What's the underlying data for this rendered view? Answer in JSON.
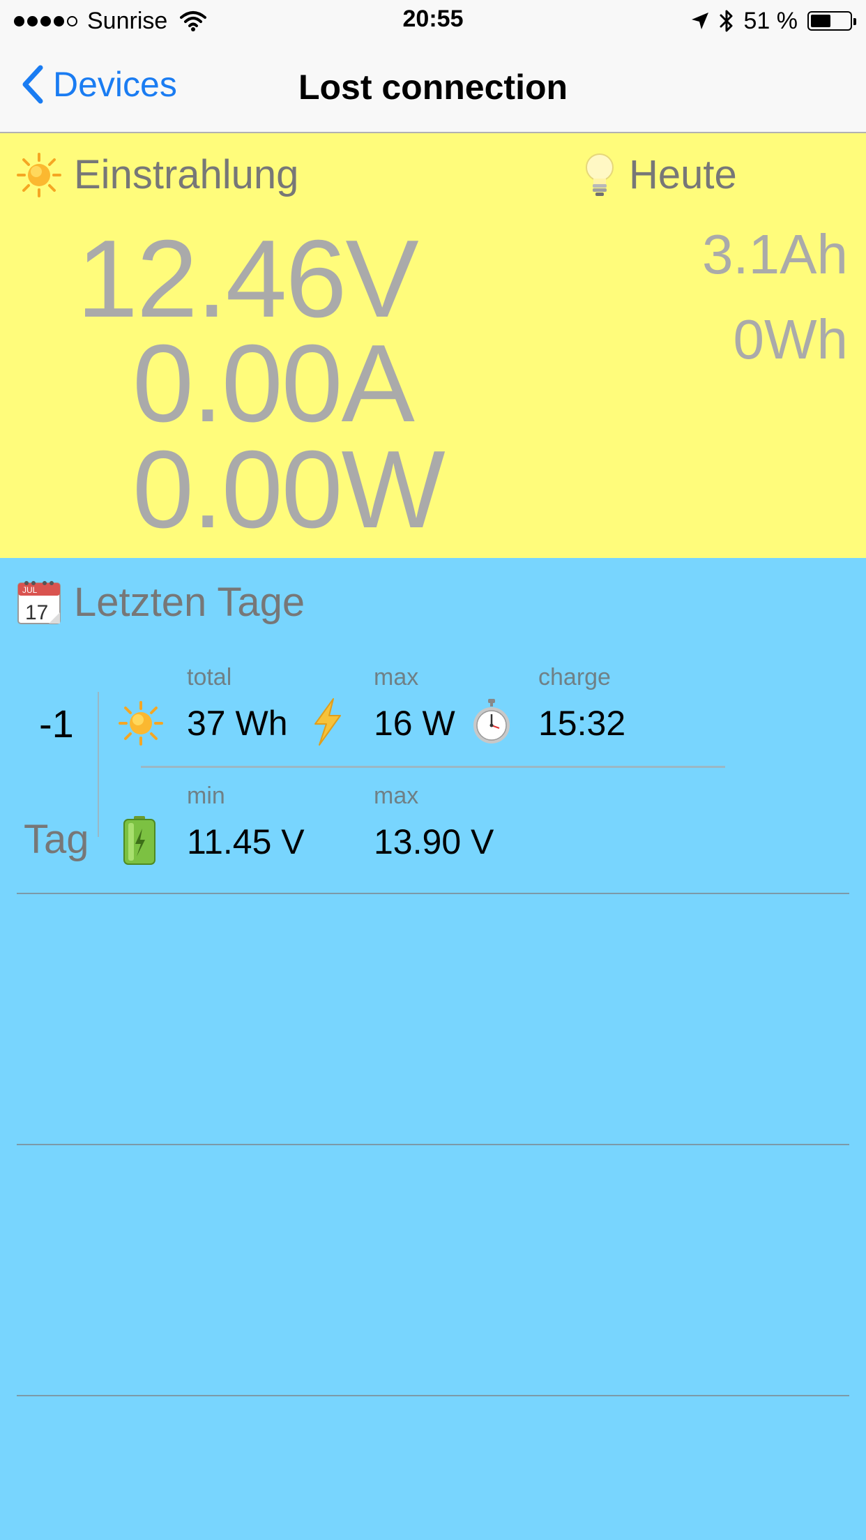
{
  "status_bar": {
    "carrier": "Sunrise",
    "time": "20:55",
    "battery_percent": "51 %",
    "battery_level": 0.51,
    "signal_bars_filled": 4,
    "signal_bars_total": 5
  },
  "nav": {
    "back_label": "Devices",
    "title": "Lost connection"
  },
  "live": {
    "irradiation_label": "Einstrahlung",
    "voltage": "12.46V",
    "current": "0.00A",
    "power": "0.00W",
    "today_label": "Heute",
    "today_ah": "3.1Ah",
    "today_wh": "0Wh"
  },
  "days": {
    "header": "Letzten Tage",
    "calendar_month": "JUL",
    "calendar_day": "17",
    "entries": [
      {
        "index": "-1",
        "unit": "Tag",
        "energy_label": "total",
        "energy_value": "37 Wh",
        "power_label": "max",
        "power_value": "16 W",
        "charge_label": "charge",
        "charge_value": "15:32",
        "vmin_label": "min",
        "vmin_value": "11.45 V",
        "vmax_label": "max",
        "vmax_value": "13.90 V"
      }
    ]
  },
  "colors": {
    "live_background": "#fffc7b",
    "days_background": "#78d5fe",
    "accent": "#1a7cf2"
  }
}
